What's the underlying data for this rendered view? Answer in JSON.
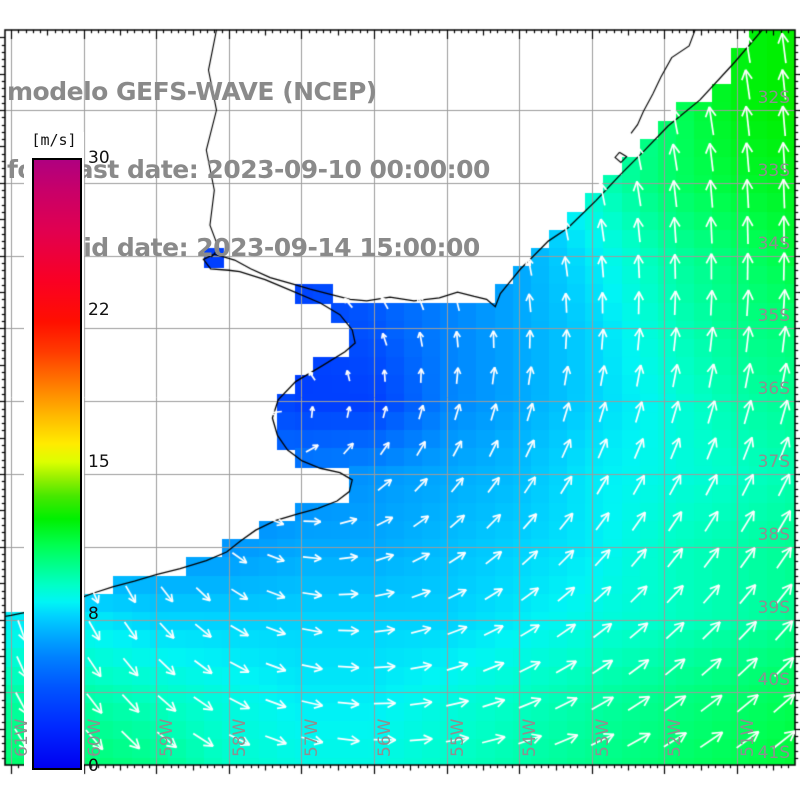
{
  "title": {
    "line1": "modelo GEFS-WAVE (NCEP)",
    "line2": "forecast date: 2023-09-10 00:00:00",
    "line3": "valid date: 2023-09-14 15:00:00"
  },
  "colorbar": {
    "units": "[m/s]",
    "min": 0,
    "max": 30,
    "ticks": [
      {
        "value": 0,
        "label": "0"
      },
      {
        "value": 7.5,
        "label": "8"
      },
      {
        "value": 15,
        "label": "15"
      },
      {
        "value": 22.5,
        "label": "22"
      },
      {
        "value": 30,
        "label": "30"
      }
    ]
  },
  "axes": {
    "lat_labels": [
      {
        "text": "32S",
        "lat": 32
      },
      {
        "text": "33S",
        "lat": 33
      },
      {
        "text": "34S",
        "lat": 34
      },
      {
        "text": "35S",
        "lat": 35
      },
      {
        "text": "36S",
        "lat": 36
      },
      {
        "text": "37S",
        "lat": 37
      },
      {
        "text": "38S",
        "lat": 38
      },
      {
        "text": "39S",
        "lat": 39
      },
      {
        "text": "40S",
        "lat": 40
      },
      {
        "text": "41S",
        "lat": 41
      }
    ],
    "lon_labels": [
      {
        "text": "61W",
        "lon": 61
      },
      {
        "text": "60W",
        "lon": 60
      },
      {
        "text": "59W",
        "lon": 59
      },
      {
        "text": "58W",
        "lon": 58
      },
      {
        "text": "57W",
        "lon": 57
      },
      {
        "text": "56W",
        "lon": 56
      },
      {
        "text": "55W",
        "lon": 55
      },
      {
        "text": "54W",
        "lon": 54
      },
      {
        "text": "53W",
        "lon": 53
      },
      {
        "text": "52W",
        "lon": 52
      },
      {
        "text": "51W",
        "lon": 51
      }
    ],
    "grid_color": "#9c9c9c",
    "label_color": "#8f8f8f"
  },
  "chart_data": {
    "type": "vector_field_map",
    "title": "modelo GEFS-WAVE (NCEP)",
    "units": "m/s",
    "extent": {
      "lon_west": 61.08,
      "lon_east": 50.2,
      "lat_north": 30.9,
      "lat_south": 41.05
    },
    "cell_size_deg": 0.25,
    "arrow_spacing_deg": 0.5,
    "colormap_stops": [
      [
        0,
        "#0000F0"
      ],
      [
        2,
        "#0028FF"
      ],
      [
        4,
        "#0055FF"
      ],
      [
        5.5,
        "#0082FF"
      ],
      [
        6.5,
        "#00A8FF"
      ],
      [
        7.5,
        "#00D2FF"
      ],
      [
        8.2,
        "#00F5F5"
      ],
      [
        9,
        "#00FFC8"
      ],
      [
        10,
        "#00FF8C"
      ],
      [
        11,
        "#00FF50"
      ],
      [
        12.3,
        "#00F000"
      ],
      [
        13.4,
        "#46E800"
      ],
      [
        14.3,
        "#96F000"
      ],
      [
        15.1,
        "#DCFF00"
      ],
      [
        16,
        "#FFEB00"
      ],
      [
        17.5,
        "#FFB400"
      ],
      [
        19,
        "#FF7800"
      ],
      [
        20.5,
        "#FF3C00"
      ],
      [
        22,
        "#FF0F00"
      ],
      [
        24,
        "#FA0023"
      ],
      [
        26.5,
        "#E10050"
      ],
      [
        28.5,
        "#C80069"
      ],
      [
        30,
        "#AF0080"
      ]
    ],
    "speed_grid": {
      "lats_s": [
        31,
        32,
        33,
        34,
        35,
        36,
        37,
        38,
        39,
        40,
        41
      ],
      "lons_w": [
        61,
        60,
        59,
        58,
        57,
        56,
        55,
        54,
        53,
        52,
        51,
        50
      ],
      "values_ms": [
        [
          5,
          5,
          5,
          5,
          5,
          5,
          6,
          7,
          9,
          11,
          12,
          12.5
        ],
        [
          5,
          5,
          5,
          5,
          5,
          5,
          6,
          7,
          8.5,
          10.5,
          12,
          12.5
        ],
        [
          4,
          4,
          4,
          4,
          4,
          4.5,
          5.5,
          7,
          9,
          10.5,
          11.5,
          12
        ],
        [
          3,
          3,
          3,
          3,
          3.5,
          4.5,
          5.5,
          6.5,
          8,
          9.5,
          10.5,
          11.5
        ],
        [
          3,
          3,
          3,
          3,
          3,
          4,
          5.5,
          6.5,
          7.5,
          9,
          10,
          10.5
        ],
        [
          4,
          4,
          4,
          4.5,
          3,
          3,
          5.5,
          6.5,
          7.5,
          8.5,
          9.5,
          10
        ],
        [
          5,
          5,
          5,
          5,
          5.5,
          6,
          6.5,
          7,
          8,
          8.5,
          9,
          9.5
        ],
        [
          6,
          6,
          6,
          6,
          6.5,
          6.5,
          7,
          7.5,
          8,
          9,
          9.5,
          10
        ],
        [
          8,
          8,
          7.5,
          7.5,
          7.5,
          7.5,
          7.5,
          8,
          8.5,
          9,
          9.5,
          10
        ],
        [
          9.5,
          9.5,
          9,
          8.5,
          8,
          8,
          8.5,
          9,
          9.5,
          10,
          10.5,
          11
        ],
        [
          10.5,
          10.5,
          10,
          9,
          8.5,
          8.5,
          9,
          9.5,
          10,
          10.5,
          11,
          11.5
        ]
      ]
    },
    "vector_model": {
      "description": "counterclockwise cyclonic flow with outward spiral; arrows blend toward north in the northeast offshore sector",
      "center_lon_w": 57.3,
      "center_lat_s": 36.26,
      "rotation": "counterclockwise",
      "outflow_ratio": 0.35,
      "north_blend": {
        "x_start_frac": 0.56,
        "y_end_frac": 0.6,
        "strength": 0.6
      },
      "arrow_color": "#ffffff"
    },
    "coastline": {
      "main_coast": [
        [
          50.61,
          30.85
        ],
        [
          51.03,
          31.34
        ],
        [
          51.51,
          31.86
        ],
        [
          51.95,
          32.22
        ],
        [
          52.27,
          32.55
        ],
        [
          52.61,
          32.89
        ],
        [
          52.94,
          33.24
        ],
        [
          53.33,
          33.62
        ],
        [
          53.6,
          33.8
        ],
        [
          53.8,
          34.0
        ],
        [
          53.98,
          34.18
        ],
        [
          54.12,
          34.35
        ],
        [
          54.26,
          34.52
        ],
        [
          54.33,
          34.7
        ],
        [
          54.45,
          34.6
        ],
        [
          54.62,
          34.56
        ],
        [
          54.85,
          34.5
        ],
        [
          55.1,
          34.58
        ],
        [
          55.45,
          34.62
        ],
        [
          55.78,
          34.57
        ],
        [
          56.1,
          34.62
        ],
        [
          56.33,
          34.6
        ],
        [
          56.6,
          34.53
        ],
        [
          56.88,
          34.46
        ],
        [
          57.15,
          34.38
        ],
        [
          57.43,
          34.3
        ],
        [
          57.7,
          34.18
        ],
        [
          57.92,
          34.06
        ],
        [
          58.2,
          33.98
        ],
        [
          58.35,
          34.05
        ],
        [
          58.25,
          34.18
        ],
        [
          58.0,
          34.2
        ],
        [
          57.85,
          34.22
        ],
        [
          57.5,
          34.33
        ],
        [
          57.09,
          34.5
        ],
        [
          56.74,
          34.65
        ],
        [
          56.47,
          34.81
        ],
        [
          56.3,
          35.02
        ],
        [
          56.26,
          35.2
        ],
        [
          56.4,
          35.32
        ],
        [
          56.71,
          35.51
        ],
        [
          57.08,
          35.73
        ],
        [
          57.32,
          35.98
        ],
        [
          57.4,
          36.23
        ],
        [
          57.33,
          36.47
        ],
        [
          57.19,
          36.67
        ],
        [
          56.99,
          36.82
        ],
        [
          56.74,
          36.92
        ],
        [
          56.47,
          36.98
        ],
        [
          56.3,
          37.08
        ],
        [
          56.34,
          37.24
        ],
        [
          56.51,
          37.37
        ],
        [
          56.77,
          37.47
        ],
        [
          57.06,
          37.55
        ],
        [
          57.36,
          37.64
        ],
        [
          57.63,
          37.77
        ],
        [
          57.84,
          37.92
        ],
        [
          58.03,
          38.07
        ],
        [
          58.31,
          38.19
        ],
        [
          58.67,
          38.3
        ],
        [
          59.0,
          38.38
        ],
        [
          59.3,
          38.47
        ],
        [
          59.6,
          38.55
        ],
        [
          59.85,
          38.63
        ],
        [
          60.1,
          38.72
        ],
        [
          60.4,
          38.8
        ],
        [
          60.7,
          38.88
        ],
        [
          61.0,
          38.94
        ],
        [
          61.3,
          38.99
        ]
      ],
      "land_close": [
        [
          61.4,
          30.8
        ]
      ],
      "rivers": [
        [
          [
            58.15,
            30.8
          ],
          [
            58.28,
            31.45
          ],
          [
            58.17,
            32.0
          ],
          [
            58.31,
            32.55
          ],
          [
            58.2,
            33.1
          ],
          [
            58.26,
            33.58
          ],
          [
            58.14,
            33.9
          ],
          [
            58.24,
            34.02
          ]
        ]
      ],
      "lagoon": [
        [
          [
            51.54,
            30.8
          ],
          [
            51.66,
            31.12
          ],
          [
            51.9,
            31.28
          ],
          [
            52.05,
            31.55
          ],
          [
            52.16,
            31.78
          ],
          [
            52.29,
            32.02
          ],
          [
            52.37,
            32.2
          ],
          [
            52.46,
            32.32
          ]
        ],
        [
          [
            52.62,
            32.58
          ],
          [
            52.52,
            32.64
          ],
          [
            52.6,
            32.72
          ],
          [
            52.68,
            32.65
          ],
          [
            52.62,
            32.58
          ]
        ]
      ]
    }
  }
}
